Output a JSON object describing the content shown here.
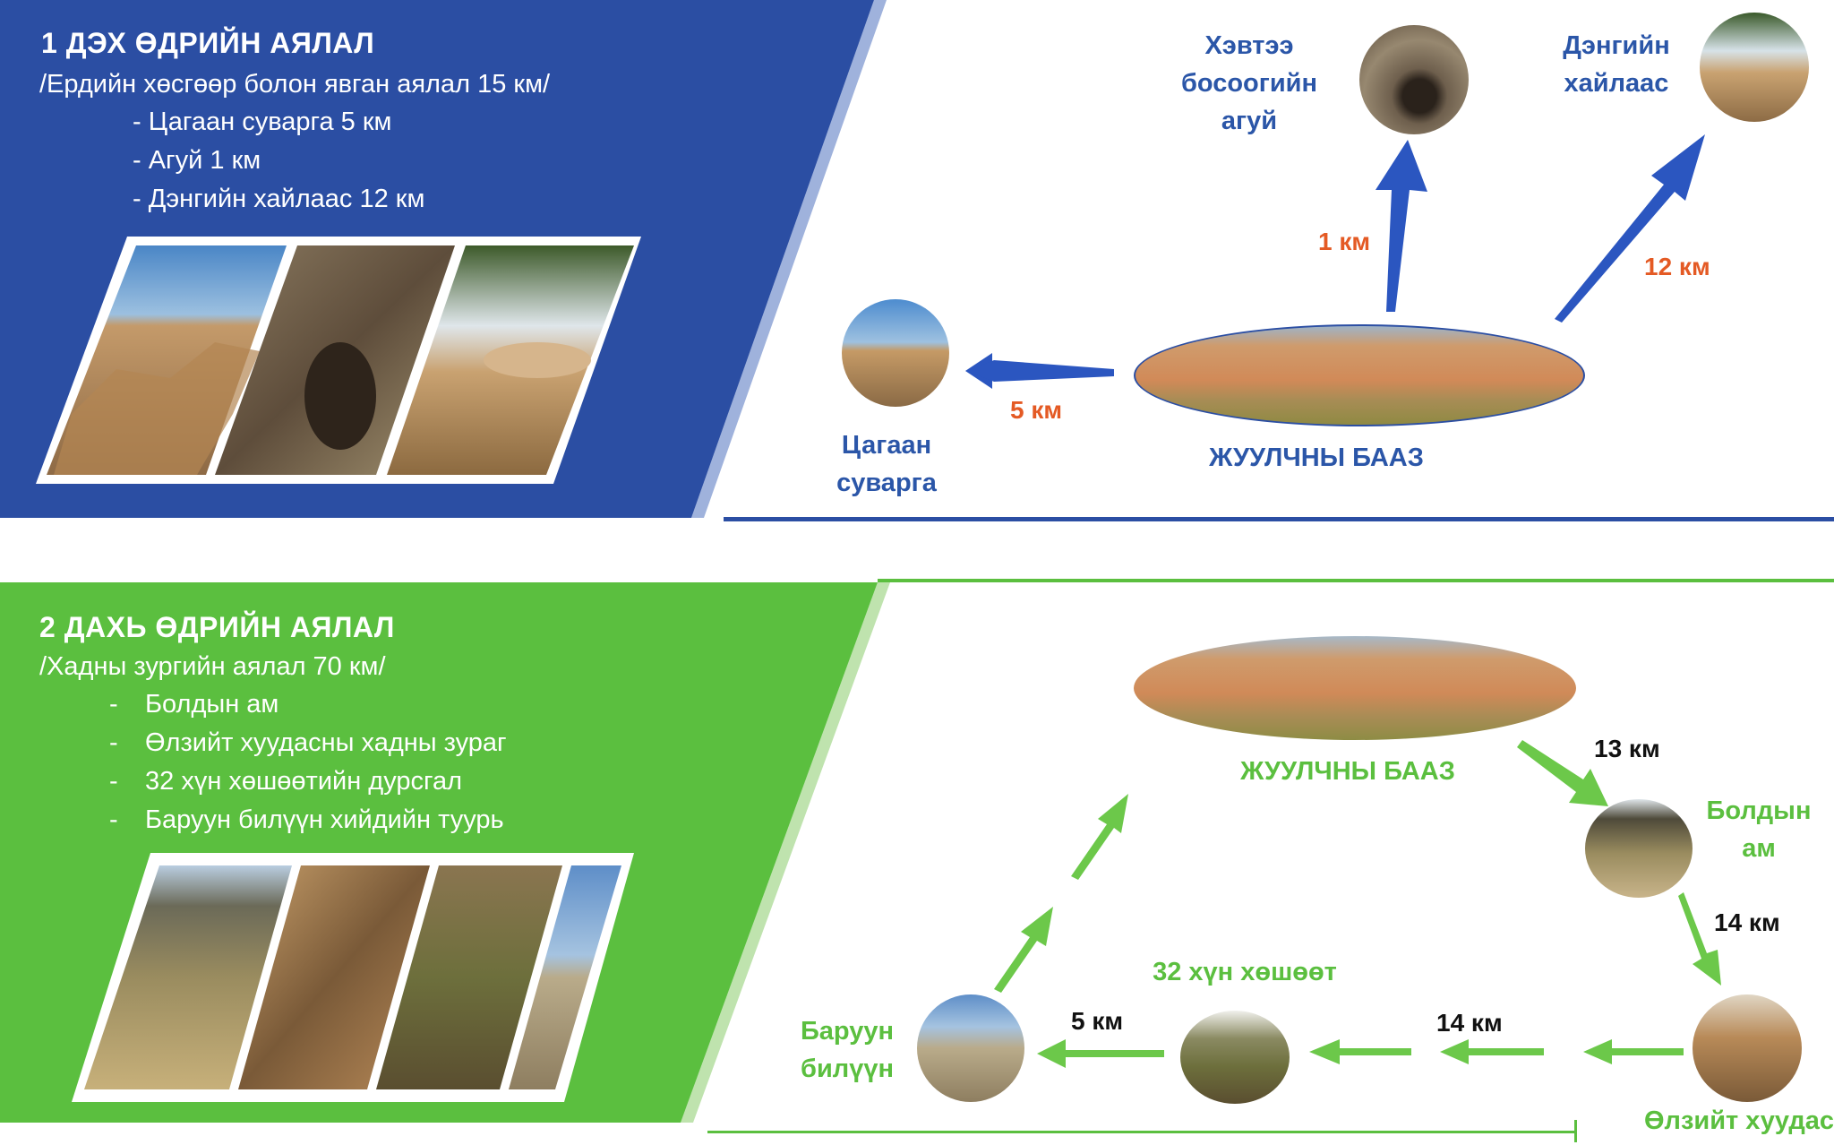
{
  "day1": {
    "title": "1 ДЭХ ӨДРИЙН АЯЛАЛ",
    "subtitle": "/Ердийн хөсгөөр болон явган аялал 15 км/",
    "items": [
      "- Цагаан суварга 5 км",
      "- Агуй 1 км",
      "- Дэнгийн хайлаас 12 км"
    ],
    "map": {
      "base_label": "ЖУУЛЧНЫ БААЗ",
      "cave_label": [
        "Хэвтээ",
        "босоогийн",
        "агуй"
      ],
      "elm_label": [
        "Дэнгийн",
        "хайлаас"
      ],
      "stupa_label": [
        "Цагаан",
        "суварга"
      ],
      "km_cave": "1 км",
      "km_elm": "12 км",
      "km_stupa": "5 км"
    },
    "colors": {
      "panel": "#2b4ea3",
      "km": "#e45a24"
    }
  },
  "day2": {
    "title": "2 ДАХЬ ӨДРИЙН АЯЛАЛ",
    "subtitle": "/Хадны зургийн аялал 70 км/",
    "items": [
      "Болдын ам",
      "Өлзийт хуудасны хадны зураг",
      "32 хүн хөшөөтийн дурсгал",
      "Баруун билүүн хийдийн туурь"
    ],
    "bullet_dash": "-",
    "map": {
      "base_label": "ЖУУЛЧНЫ БААЗ",
      "boldyn_label": [
        "Болдын",
        "ам"
      ],
      "ulziit_label": "Өлзийт хуудас",
      "statue_label": "32 хүн хөшөөт",
      "baruun_label": [
        "Баруун",
        "билүүн"
      ],
      "km_13": "13 км",
      "km_14a": "14 км",
      "km_14b": "14 км",
      "km_5": "5 км"
    },
    "colors": {
      "panel": "#5bbf3f"
    }
  }
}
